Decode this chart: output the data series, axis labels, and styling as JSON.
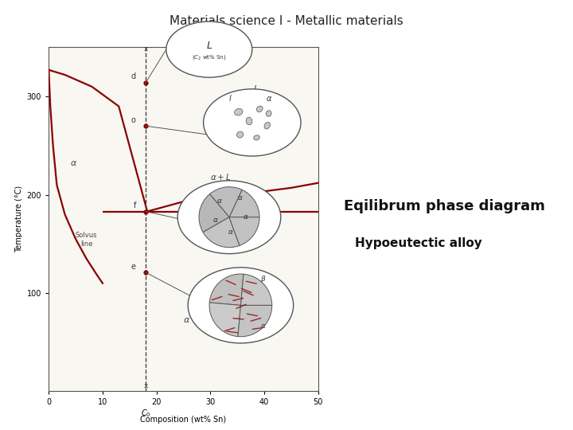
{
  "title": "Materials science I - Metallic materials",
  "subtitle_line1": "Eqilibrum phase diagram",
  "subtitle_line2": "Hypoeutectic alloy",
  "ylabel": "Temperature (°C)",
  "xlim": [
    0,
    50
  ],
  "ylim": [
    0,
    350
  ],
  "yticks": [
    100,
    200,
    300
  ],
  "xticks": [
    0,
    10,
    20,
    30,
    40,
    50
  ],
  "background_color": "#ffffff",
  "curve_color": "#8B0000",
  "alloy_x": 18,
  "eutectic_temp": 183,
  "point_d_y": 314,
  "point_o_y": 270,
  "point_f_y": 183,
  "point_e_y": 121,
  "liq_left_x": [
    0,
    3,
    8,
    13,
    18.3
  ],
  "liq_left_y": [
    327,
    322,
    310,
    290,
    183
  ],
  "liq_right_x": [
    18.3,
    25,
    35,
    45,
    50
  ],
  "liq_right_y": [
    183,
    193,
    200,
    207,
    212
  ],
  "solv_x": [
    0,
    0.3,
    0.8,
    1.5,
    3,
    5,
    7,
    9,
    10
  ],
  "solv_y": [
    327,
    290,
    250,
    210,
    180,
    155,
    135,
    118,
    110
  ],
  "eutectic_x_start": 10,
  "eutectic_x_end": 50
}
